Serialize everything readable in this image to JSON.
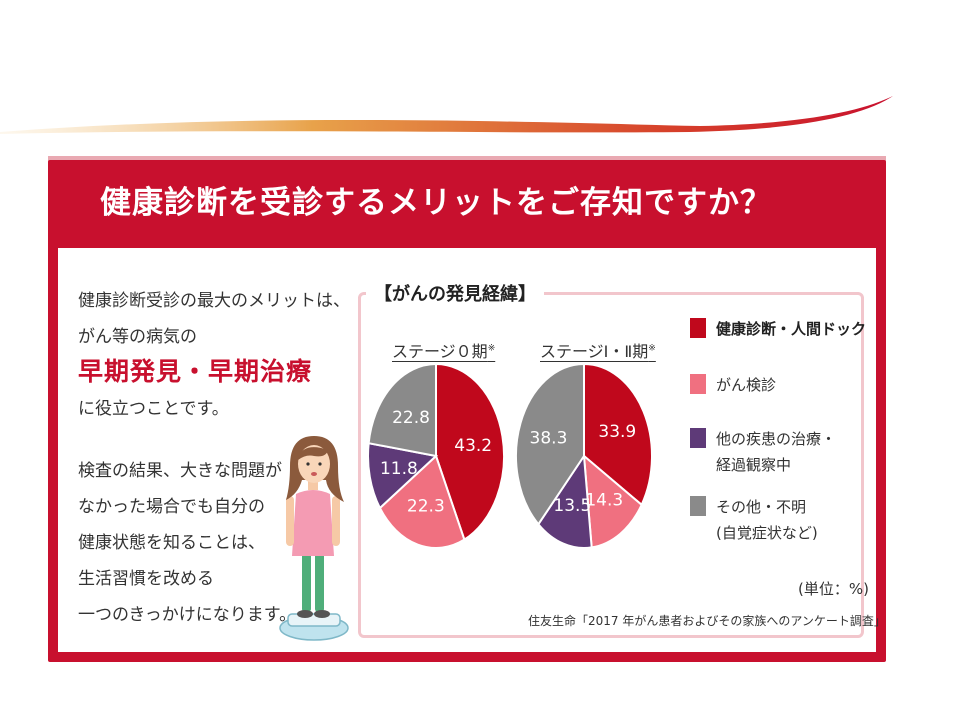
{
  "headline": "健康診断を受診するメリットをご存知ですか？",
  "left_text": {
    "lead_1": "健康診断受診の最大のメリットは、",
    "lead_2": "がん等の病気の",
    "emphasis": "早期発見・早期治療",
    "lead_3": "に役立つことです。",
    "body": [
      "検査の結果、大きな問題が",
      "なかった場合でも自分の",
      "健康状態を知ることは、",
      "生活習慣を改める",
      "一つのきっかけになります。"
    ]
  },
  "panel_title": "【がんの発見経緯】",
  "unit": "(単位：%)",
  "source": "住友生命「2017 年がん患者およびその家族へのアンケート調査」",
  "colors": {
    "brand_red": "#c8102e",
    "slice_dark_red": "#c0081c",
    "slice_pink": "#f07080",
    "slice_purple": "#5e3a78",
    "slice_gray": "#8a8a8a"
  },
  "chart_data": [
    {
      "type": "pie",
      "title": "ステージ０期",
      "title_mark": "※",
      "labels": [
        "健康診断・人間ドック",
        "がん検診",
        "他の疾患の治療・経過観察中",
        "その他・不明(自覚症状など)"
      ],
      "values": [
        43.2,
        22.3,
        11.8,
        22.8
      ],
      "value_labels": [
        "43.2",
        "22.3",
        "11.8",
        "22.8"
      ],
      "colors": [
        "#c0081c",
        "#f07080",
        "#5e3a78",
        "#8a8a8a"
      ],
      "legend_position": "right",
      "unit": "%"
    },
    {
      "type": "pie",
      "title": "ステージⅠ・Ⅱ期",
      "title_mark": "※",
      "labels": [
        "健康診断・人間ドック",
        "がん検診",
        "他の疾患の治療・経過観察中",
        "その他・不明(自覚症状など)"
      ],
      "values": [
        33.9,
        14.3,
        13.5,
        38.3
      ],
      "value_labels": [
        "33.9",
        "14.3",
        "13.5",
        "38.3"
      ],
      "colors": [
        "#c0081c",
        "#f07080",
        "#5e3a78",
        "#8a8a8a"
      ],
      "legend_position": "right",
      "unit": "%"
    }
  ],
  "legend": [
    {
      "line1": "健康診断・人間ドック",
      "line2": "",
      "color": "#c0081c"
    },
    {
      "line1": "がん検診",
      "line2": "",
      "color": "#f07080"
    },
    {
      "line1": "他の疾患の治療・",
      "line2": "経過観察中",
      "color": "#5e3a78"
    },
    {
      "line1": "その他・不明",
      "line2": "(自覚症状など)",
      "color": "#8a8a8a"
    }
  ]
}
